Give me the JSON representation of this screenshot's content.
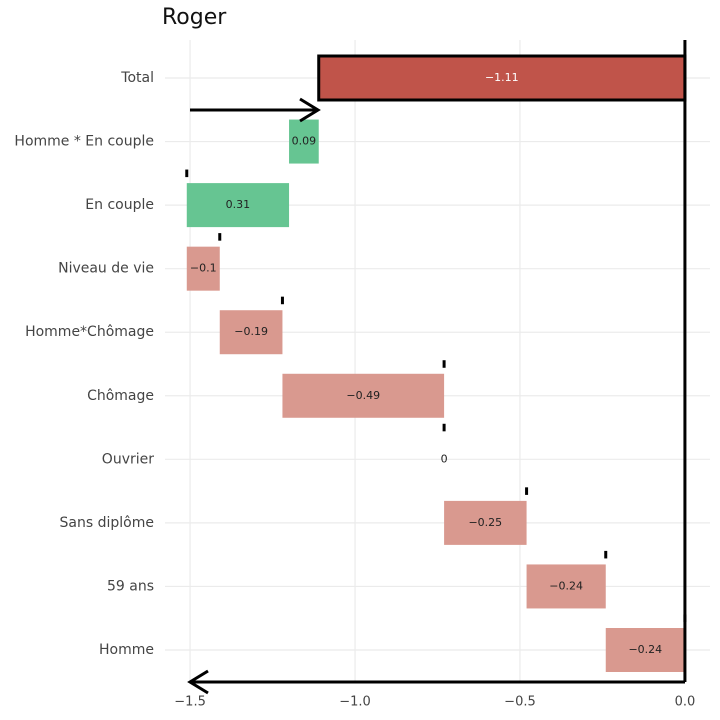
{
  "chart_data": {
    "type": "waterfall",
    "title": "Roger",
    "total": {
      "label": "Total",
      "value": -1.11,
      "value_label": "−1.11",
      "color": "#c0544a"
    },
    "categories": [
      "Homme * En couple",
      "En couple",
      "Niveau de vie",
      "Homme*Chômage",
      "Chômage",
      "Ouvrier",
      "Sans diplôme",
      "59 ans",
      "Homme"
    ],
    "values": [
      0.09,
      0.31,
      -0.1,
      -0.19,
      -0.49,
      0,
      -0.25,
      -0.24,
      -0.24
    ],
    "value_labels": [
      "0.09",
      "0.31",
      "−0.1",
      "−0.19",
      "−0.49",
      "0",
      "−0.25",
      "−0.24",
      "−0.24"
    ],
    "colors": {
      "positive": "#66c592",
      "negative": "#d9998f"
    },
    "xlim": [
      -1.576,
      0.076
    ],
    "xticks": [
      {
        "value": -1.5,
        "label": "−1.5"
      },
      {
        "value": -1.0,
        "label": "−1.0"
      },
      {
        "value": -0.5,
        "label": "−0.5"
      },
      {
        "value": 0.0,
        "label": "0.0"
      }
    ],
    "grid": true
  }
}
